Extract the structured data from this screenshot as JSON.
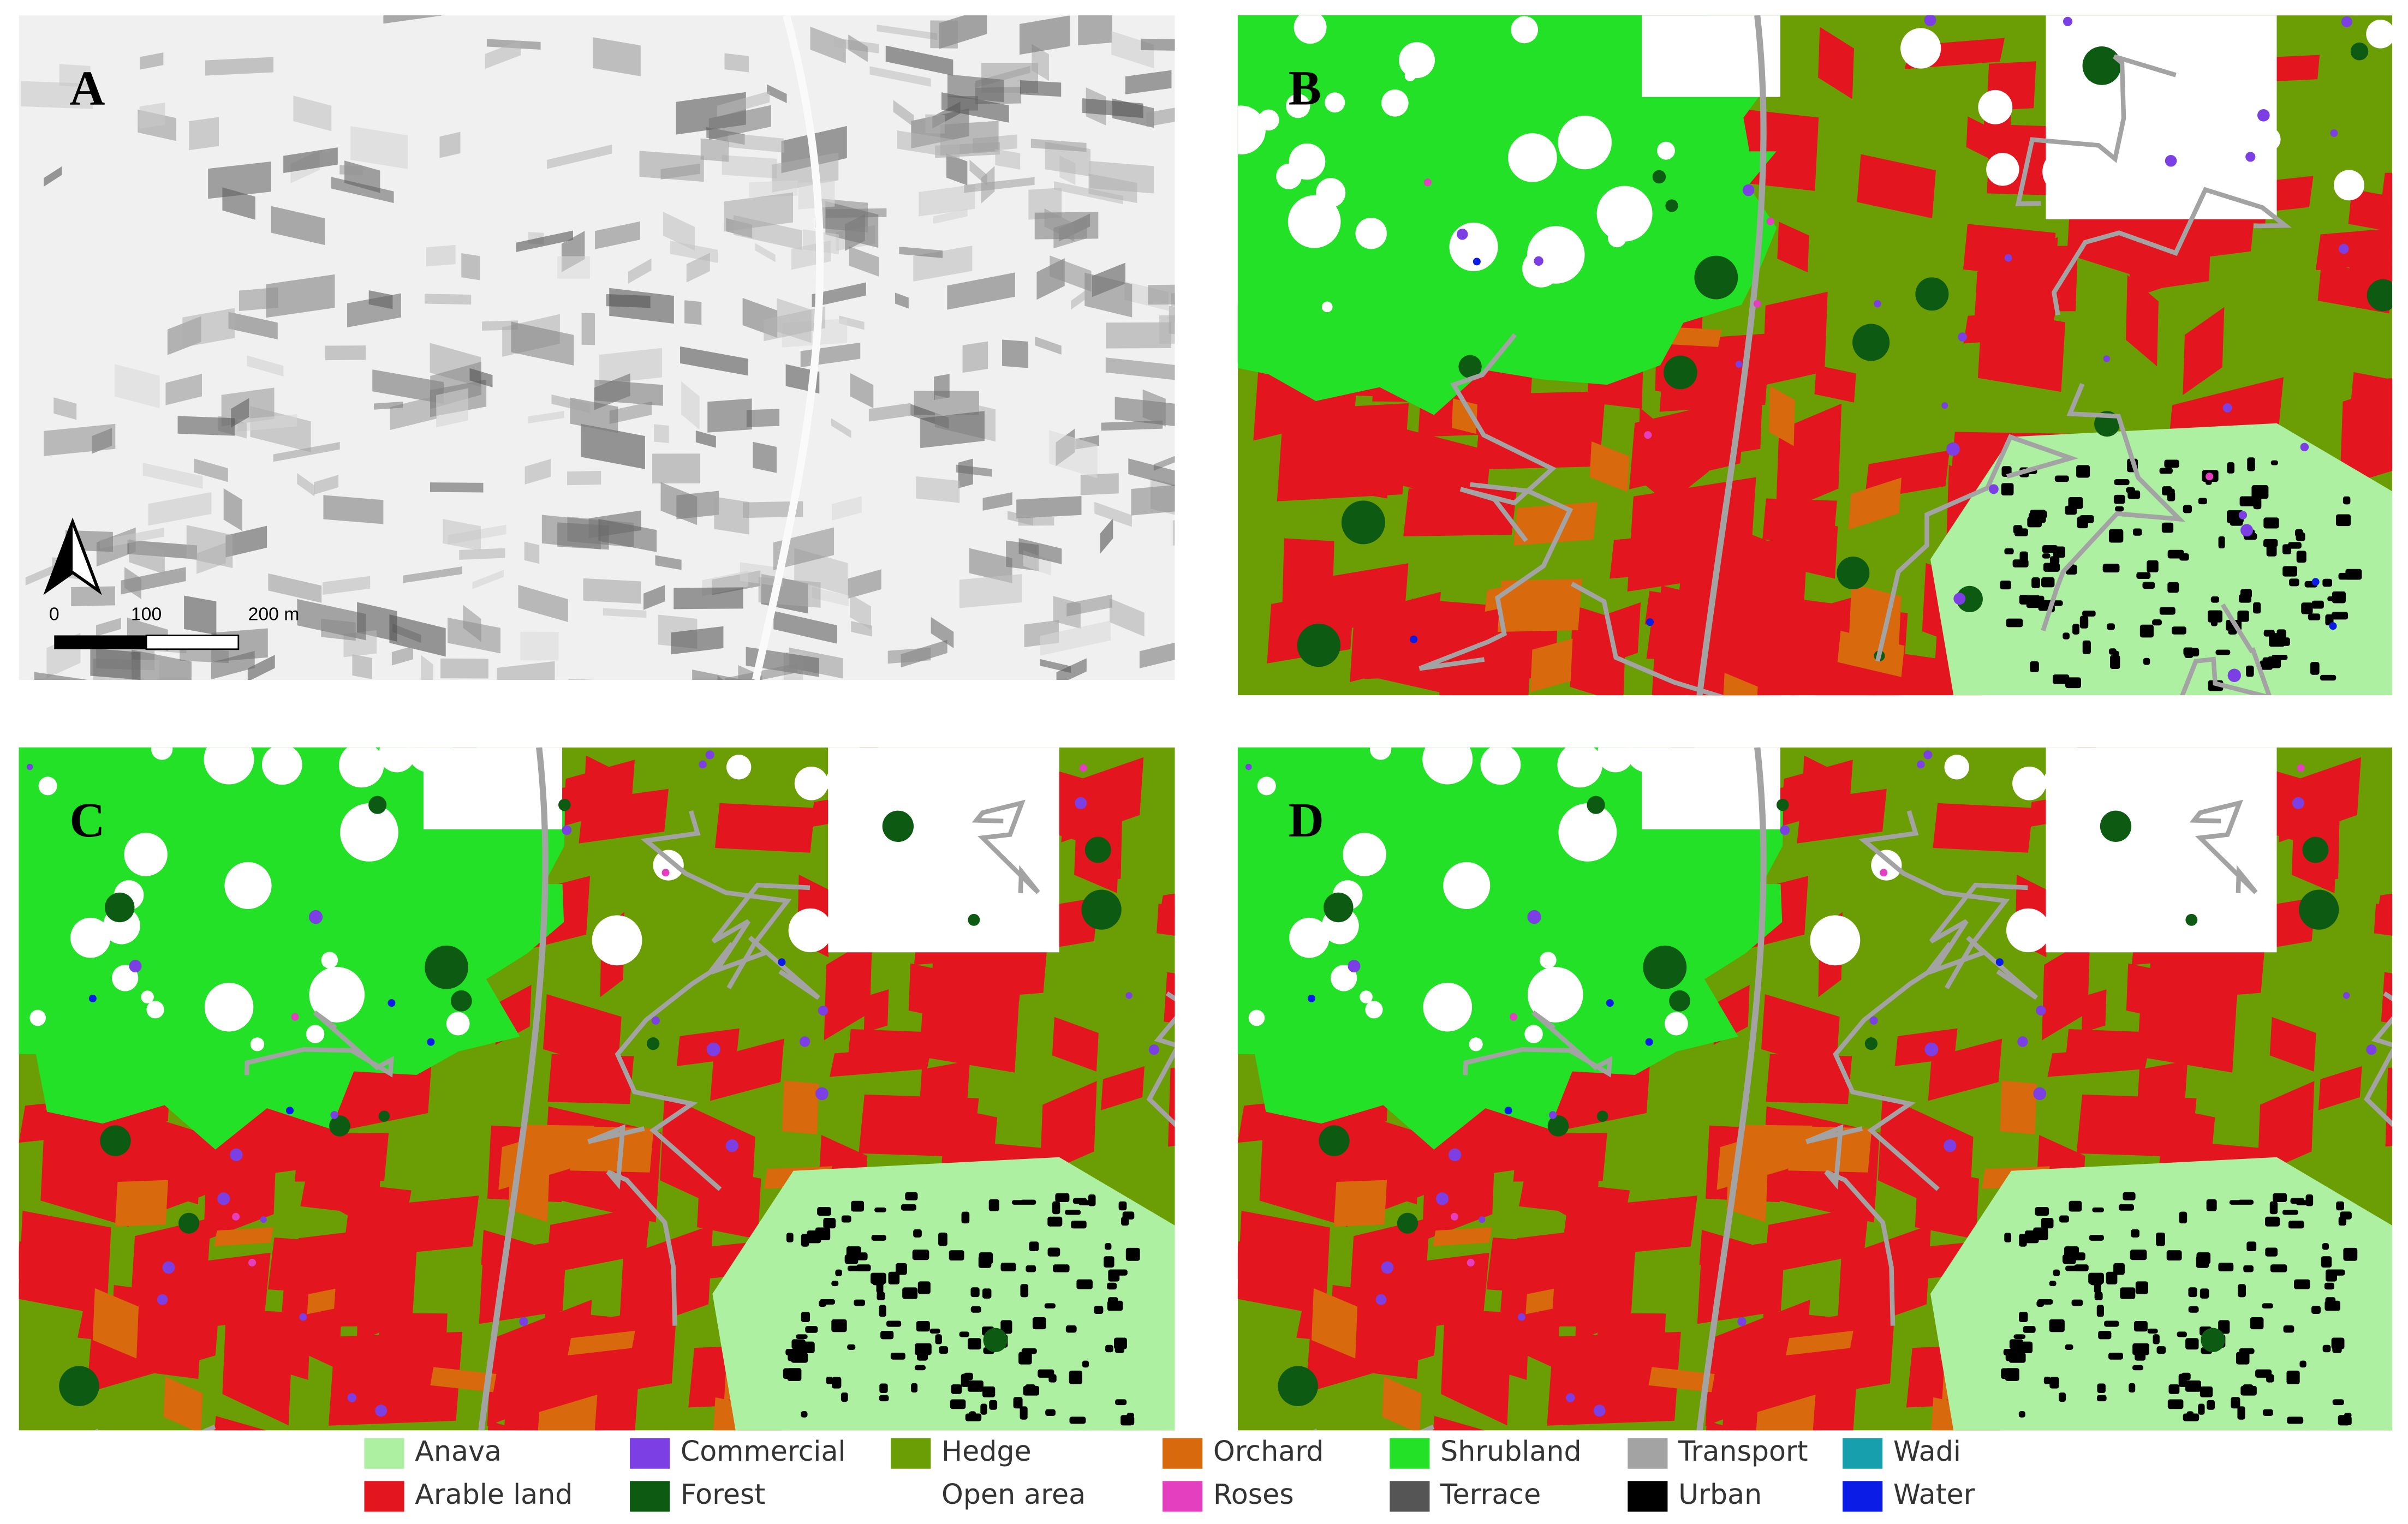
{
  "panels": [
    {
      "label": "A"
    },
    {
      "label": "B"
    },
    {
      "label": "C"
    },
    {
      "label": "D"
    }
  ],
  "scale_bar": {
    "labels": [
      "0",
      "100",
      "200 m"
    ]
  },
  "legend": [
    {
      "name": "Anava",
      "color": "#aef0a2"
    },
    {
      "name": "Arable land",
      "color": "#e3161f"
    },
    {
      "name": "Commercial",
      "color": "#7b3fe4"
    },
    {
      "name": "Forest",
      "color": "#0d5a12"
    },
    {
      "name": "Hedge",
      "color": "#6b9e05"
    },
    {
      "name": "Open area",
      "color": "#ffffff"
    },
    {
      "name": "Orchard",
      "color": "#d8690c"
    },
    {
      "name": "Roses",
      "color": "#e33fbf"
    },
    {
      "name": "Shrubland",
      "color": "#22e127"
    },
    {
      "name": "Terrace",
      "color": "#555555"
    },
    {
      "name": "Transport",
      "color": "#a3a3a3"
    },
    {
      "name": "Urban",
      "color": "#000000"
    },
    {
      "name": "Wadi",
      "color": "#179fae"
    },
    {
      "name": "Water",
      "color": "#0b1ce6"
    }
  ]
}
